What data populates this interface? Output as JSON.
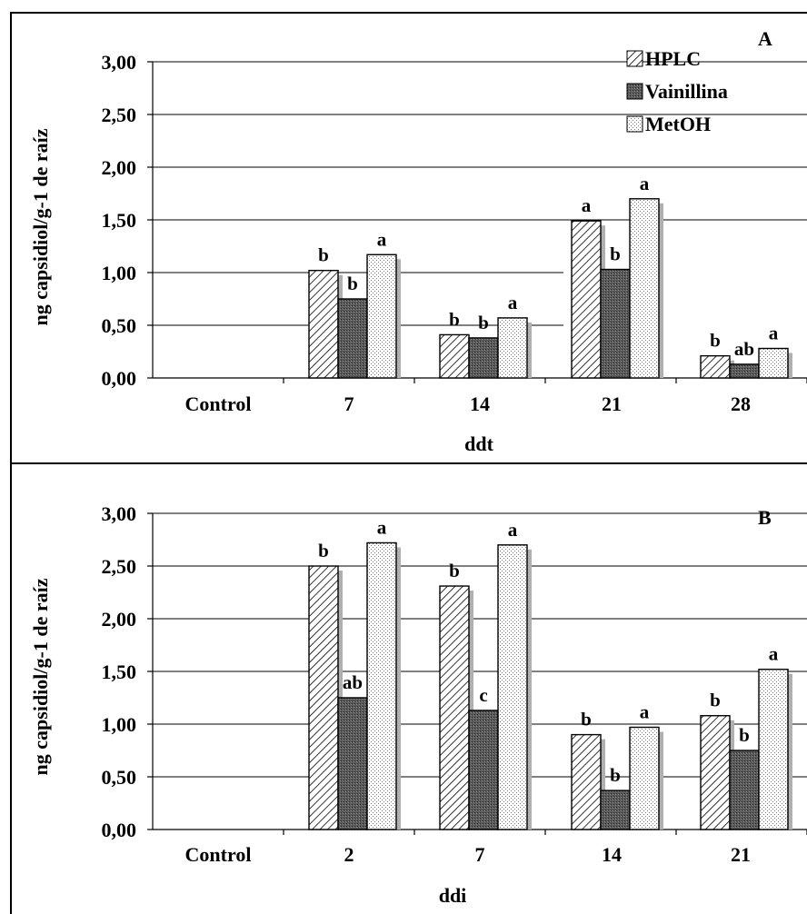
{
  "legend": [
    {
      "name": "HPLC",
      "pattern": "diag"
    },
    {
      "name": "Vainillina",
      "pattern": "dark"
    },
    {
      "name": "MetOH",
      "pattern": "dots"
    }
  ],
  "colors": {
    "frame": "#000000",
    "shadow": "#b0b0b0",
    "dark_fill": "#555555"
  },
  "chart_data": [
    {
      "type": "bar",
      "panel": "A",
      "xlabel": "ddt",
      "ylabel": "ng capsidiol/g-1 de raíz",
      "ylim": [
        0,
        3
      ],
      "yticks": [
        "0,00",
        "0,50",
        "1,00",
        "1,50",
        "2,00",
        "2,50",
        "3,00"
      ],
      "categories": [
        "Control",
        "7",
        "14",
        "21",
        "28"
      ],
      "series": [
        {
          "name": "HPLC",
          "values": [
            0,
            1.02,
            0.41,
            1.49,
            0.21
          ],
          "labels": [
            "",
            "b",
            "b",
            "a",
            "b"
          ]
        },
        {
          "name": "Vainillina",
          "values": [
            0,
            0.75,
            0.38,
            1.03,
            0.13
          ],
          "labels": [
            "",
            "b",
            "b",
            "b",
            "ab"
          ]
        },
        {
          "name": "MetOH",
          "values": [
            0,
            1.17,
            0.57,
            1.7,
            0.28
          ],
          "labels": [
            "",
            "a",
            "a",
            "a",
            "a"
          ]
        }
      ],
      "grid": true,
      "legend_position": "top-right"
    },
    {
      "type": "bar",
      "panel": "B",
      "xlabel": "ddi",
      "ylabel": "ng capsidiol/g-1 de raíz",
      "ylim": [
        0,
        3
      ],
      "yticks": [
        "0,00",
        "0,50",
        "1,00",
        "1,50",
        "2,00",
        "2,50",
        "3,00"
      ],
      "categories": [
        "Control",
        "2",
        "7",
        "14",
        "21"
      ],
      "series": [
        {
          "name": "HPLC",
          "values": [
            0,
            2.5,
            2.31,
            0.9,
            1.08
          ],
          "labels": [
            "",
            "b",
            "b",
            "b",
            "b"
          ]
        },
        {
          "name": "Vainillina",
          "values": [
            0,
            1.25,
            1.13,
            0.37,
            0.75
          ],
          "labels": [
            "",
            "ab",
            "c",
            "b",
            "b"
          ]
        },
        {
          "name": "MetOH",
          "values": [
            0,
            2.72,
            2.7,
            0.97,
            1.52
          ],
          "labels": [
            "",
            "a",
            "a",
            "a",
            "a"
          ]
        }
      ],
      "grid": true
    }
  ]
}
